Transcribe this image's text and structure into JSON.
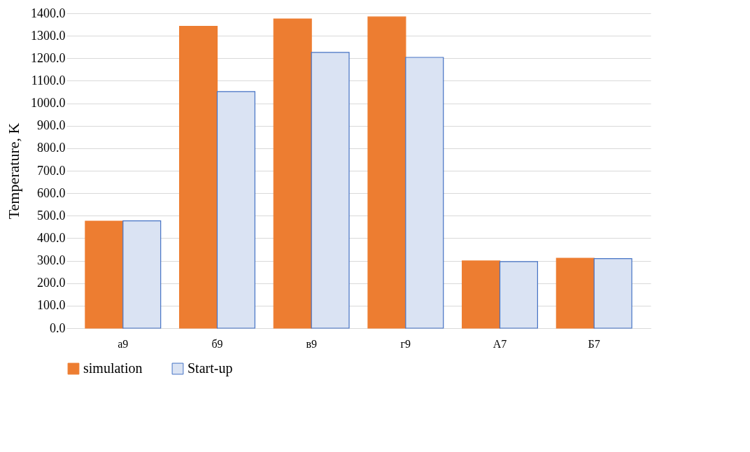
{
  "chart_data": {
    "type": "bar",
    "ylabel": "Temperature, K",
    "categories": [
      "а9",
      "б9",
      "в9",
      "г9",
      "А7",
      "Б7"
    ],
    "series": [
      {
        "name": "simulation",
        "color": "#ed7d31",
        "values": [
          476,
          1342,
          1375,
          1384,
          299,
          311
        ]
      },
      {
        "name": "Start-up",
        "color": "#4472c4",
        "values": [
          477,
          1052,
          1226,
          1204,
          296,
          309
        ]
      }
    ],
    "ylim": [
      0,
      1400
    ],
    "yticks": [
      {
        "value": 0,
        "label": "0.0"
      },
      {
        "value": 100,
        "label": "100.0"
      },
      {
        "value": 200,
        "label": "200.0"
      },
      {
        "value": 300,
        "label": "300.0"
      },
      {
        "value": 400,
        "label": "400.0"
      },
      {
        "value": 500,
        "label": "500.0"
      },
      {
        "value": 600,
        "label": "600.0"
      },
      {
        "value": 700,
        "label": "700.0"
      },
      {
        "value": 800,
        "label": "800.0"
      },
      {
        "value": 900,
        "label": "900.0"
      },
      {
        "value": 1000,
        "label": "1000.0"
      },
      {
        "value": 1100,
        "label": "1100.0"
      },
      {
        "value": 1200,
        "label": "1200.0"
      },
      {
        "value": 1300,
        "label": "1300.0"
      },
      {
        "value": 1400,
        "label": "1400.0"
      }
    ],
    "grid": "y",
    "legend": "bottom"
  }
}
